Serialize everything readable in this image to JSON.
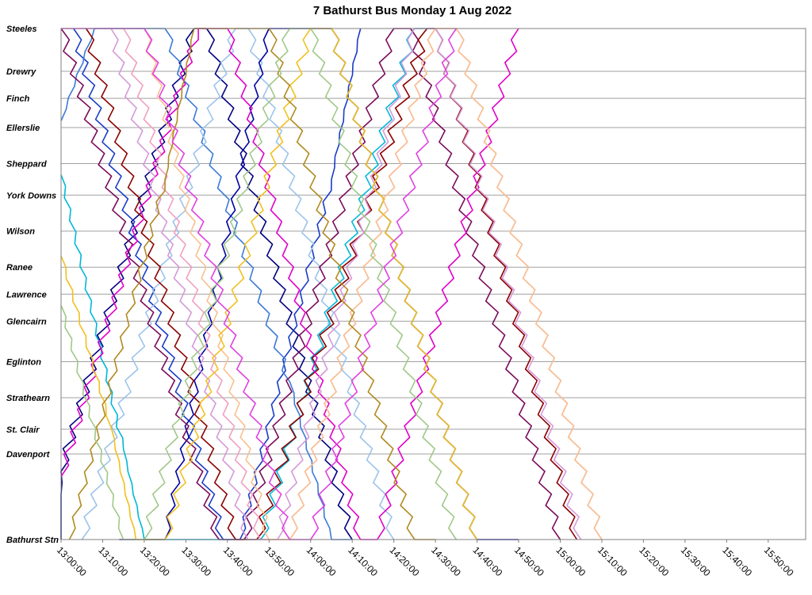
{
  "chart_data": {
    "type": "line",
    "title": "7 Bathurst Bus Monday 1 Aug 2022",
    "x_ticks": [
      "13:00:00",
      "13:10:00",
      "13:20:00",
      "13:30:00",
      "13:40:00",
      "13:50:00",
      "14:00:00",
      "14:10:00",
      "14:20:00",
      "14:30:00",
      "14:40:00",
      "14:50:00",
      "15:00:00",
      "15:10:00",
      "15:20:00",
      "15:30:00",
      "15:40:00",
      "15:50:00"
    ],
    "xlim": [
      "13:00:00",
      "15:59:00"
    ],
    "stops": [
      {
        "name": "Steeles",
        "km": 11.35
      },
      {
        "name": "Drewry",
        "km": 10.4
      },
      {
        "name": "Finch",
        "km": 9.8
      },
      {
        "name": "Ellerslie",
        "km": 9.15
      },
      {
        "name": "Sheppard",
        "km": 8.35
      },
      {
        "name": "York Downs",
        "km": 7.65
      },
      {
        "name": "Wilson",
        "km": 6.85
      },
      {
        "name": "Ranee",
        "km": 6.05
      },
      {
        "name": "Lawrence",
        "km": 5.45
      },
      {
        "name": "Glencairn",
        "km": 4.85
      },
      {
        "name": "Eglinton",
        "km": 3.95
      },
      {
        "name": "Strathearn",
        "km": 3.15
      },
      {
        "name": "St. Clair",
        "km": 2.45
      },
      {
        "name": "Davenport",
        "km": 1.9
      },
      {
        "name": "Bathurst Stn",
        "km": 0.0
      }
    ],
    "ylim": [
      0,
      11.35
    ],
    "grid": true,
    "legend": "none",
    "series_colors": [
      "#000080",
      "#1a3cc8",
      "#3c7ad6",
      "#9cc3ea",
      "#00b8d8",
      "#0000a0",
      "#7a0a5a",
      "#8b0000",
      "#e000c8",
      "#d49ad8",
      "#f0a0c0",
      "#f8c090",
      "#f0c020",
      "#b08a20",
      "#a0c888",
      "#e040e0"
    ],
    "series": [
      {
        "name": "",
        "values": [
          [
            "12:55:00",
            0
          ],
          [
            "13:32:00",
            11.35
          ],
          [
            "13:35:00",
            11.35
          ],
          [
            "14:10:00",
            0
          ]
        ]
      },
      {
        "name": "",
        "values": [
          [
            "13:03:00",
            11.35
          ],
          [
            "13:39:00",
            0
          ],
          [
            "13:43:00",
            0
          ],
          [
            "14:05:00",
            8.0
          ],
          [
            "14:12:00",
            11.35
          ]
        ]
      },
      {
        "name": "",
        "values": [
          [
            "13:00:00",
            9.3
          ],
          [
            "13:08:00",
            11.35
          ],
          [
            "13:25:00",
            11.35
          ],
          [
            "13:55:00",
            3.5
          ],
          [
            "14:05:00",
            0
          ],
          [
            "14:10:00",
            0
          ]
        ]
      },
      {
        "name": "",
        "values": [
          [
            "13:05:00",
            0
          ],
          [
            "13:42:00",
            11.35
          ],
          [
            "13:45:00",
            11.35
          ],
          [
            "14:20:00",
            0
          ]
        ]
      },
      {
        "name": "",
        "values": [
          [
            "13:00:00",
            8.1
          ],
          [
            "13:15:00",
            2.0
          ],
          [
            "13:20:00",
            0
          ],
          [
            "13:48:00",
            0
          ],
          [
            "14:25:00",
            11.35
          ],
          [
            "14:30:00",
            11.35
          ]
        ]
      },
      {
        "name": "",
        "values": [
          [
            "13:14:00",
            0
          ],
          [
            "13:25:00",
            0
          ],
          [
            "13:50:00",
            11.35
          ],
          [
            "14:05:00",
            11.35
          ],
          [
            "14:40:00",
            0
          ],
          [
            "14:50:00",
            0
          ]
        ]
      },
      {
        "name": "",
        "values": [
          [
            "13:00:00",
            11.35
          ],
          [
            "13:38:00",
            0
          ],
          [
            "13:44:00",
            0
          ],
          [
            "14:20:00",
            11.35
          ],
          [
            "14:24:00",
            11.35
          ],
          [
            "15:00:00",
            0
          ]
        ]
      },
      {
        "name": "",
        "values": [
          [
            "13:06:00",
            11.35
          ],
          [
            "13:42:00",
            0
          ],
          [
            "13:47:00",
            0
          ],
          [
            "14:28:00",
            11.35
          ],
          [
            "14:30:00",
            11.35
          ],
          [
            "15:04:00",
            0
          ]
        ]
      },
      {
        "name": "",
        "values": [
          [
            "13:00:00",
            1.4
          ],
          [
            "13:33:00",
            11.35
          ],
          [
            "13:40:00",
            11.35
          ],
          [
            "14:12:00",
            0
          ],
          [
            "14:16:00",
            0
          ],
          [
            "14:50:00",
            11.35
          ]
        ]
      },
      {
        "name": "",
        "values": [
          [
            "13:12:00",
            11.35
          ],
          [
            "13:45:00",
            0
          ],
          [
            "13:52:00",
            0
          ],
          [
            "14:25:00",
            11.35
          ],
          [
            "14:30:00",
            11.35
          ],
          [
            "15:05:00",
            0
          ]
        ]
      },
      {
        "name": "",
        "values": [
          [
            "13:15:00",
            11.35
          ],
          [
            "13:48:00",
            0
          ],
          [
            "13:55:00",
            0
          ],
          [
            "14:30:00",
            11.35
          ],
          [
            "14:35:00",
            11.35
          ],
          [
            "15:10:00",
            0
          ]
        ]
      },
      {
        "name": "",
        "values": [
          [
            "13:20:00",
            11.35
          ],
          [
            "13:50:00",
            0
          ],
          [
            "13:55:00",
            0
          ],
          [
            "14:30:00",
            11.35
          ],
          [
            "14:35:00",
            11.35
          ],
          [
            "15:10:00",
            0
          ]
        ]
      },
      {
        "name": "",
        "values": [
          [
            "13:00:00",
            6.3
          ],
          [
            "13:12:00",
            2.5
          ],
          [
            "13:18:00",
            0
          ],
          [
            "13:25:00",
            0
          ],
          [
            "14:00:00",
            11.35
          ],
          [
            "14:05:00",
            11.35
          ],
          [
            "14:40:00",
            0
          ]
        ]
      },
      {
        "name": "",
        "values": [
          [
            "13:02:00",
            0
          ],
          [
            "13:25:00",
            8.0
          ],
          [
            "13:32:00",
            11.35
          ],
          [
            "13:50:00",
            11.35
          ],
          [
            "14:25:00",
            0
          ],
          [
            "14:30:00",
            0
          ]
        ]
      },
      {
        "name": "",
        "values": [
          [
            "13:00:00",
            5.2
          ],
          [
            "13:15:00",
            0
          ],
          [
            "13:20:00",
            0
          ],
          [
            "13:55:00",
            11.35
          ],
          [
            "14:00:00",
            11.35
          ],
          [
            "14:35:00",
            0
          ]
        ]
      },
      {
        "name": "",
        "values": [
          [
            "13:00:00",
            11.35
          ],
          [
            "13:20:00",
            11.35
          ],
          [
            "13:55:00",
            0
          ],
          [
            "14:00:00",
            0
          ],
          [
            "14:35:00",
            11.35
          ]
        ]
      }
    ]
  }
}
